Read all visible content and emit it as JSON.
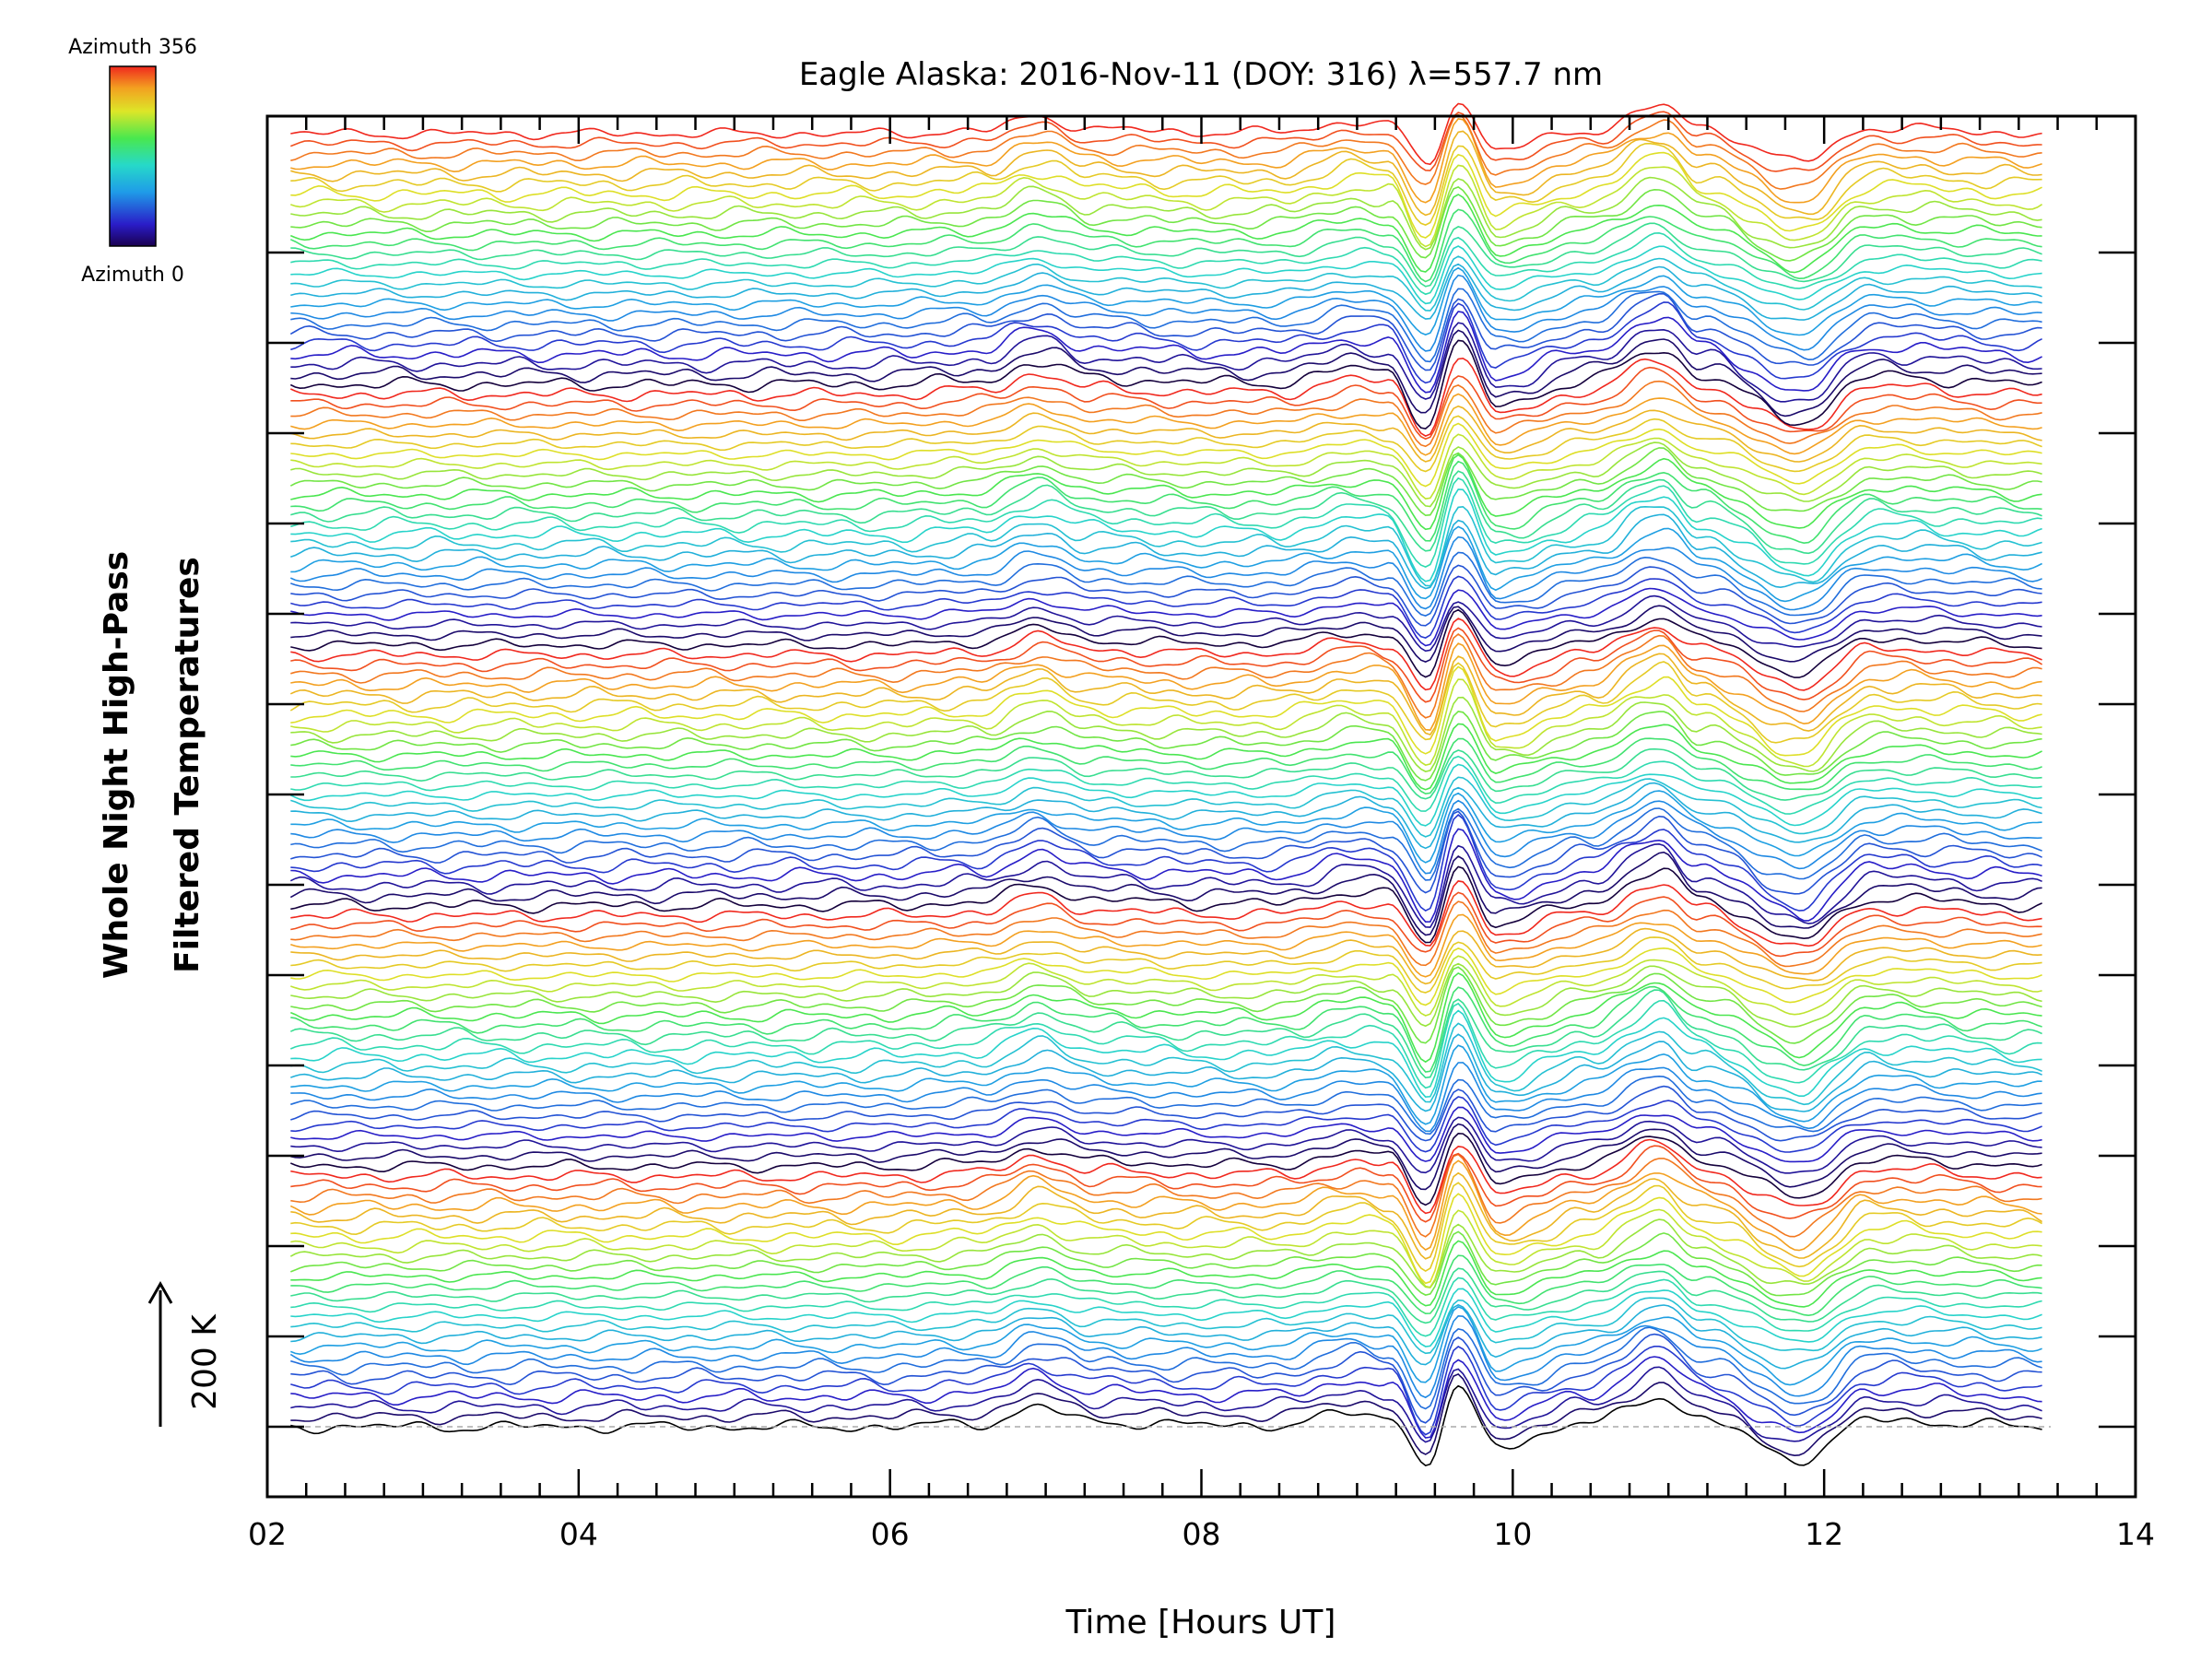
{
  "chart_data": {
    "type": "line",
    "title": "Eagle Alaska: 2016-Nov-11 (DOY: 316) λ=557.7 nm",
    "xlabel": "Time [Hours UT]",
    "ylabel_lines": [
      "Whole Night High-Pass",
      "Filtered Temperatures"
    ],
    "xlim": [
      2,
      14
    ],
    "x_ticks": [
      "02",
      "04",
      "06",
      "08",
      "10",
      "12",
      "14"
    ],
    "x_data_range": [
      2.15,
      13.4
    ],
    "scale_bar_label": "200 K",
    "grid": false,
    "legend": {
      "type": "colorbar",
      "placement": "top-left",
      "max_label": "Azimuth 356",
      "min_label": "Azimuth 0",
      "colormap": "rainbow"
    },
    "series_count": 130,
    "azimuth_range_deg": [
      0,
      356
    ],
    "profile_key_points": {
      "x": [
        2.15,
        3.0,
        4.0,
        5.0,
        6.0,
        6.6,
        6.95,
        7.3,
        8.0,
        8.5,
        9.0,
        9.2,
        9.45,
        9.65,
        9.9,
        10.5,
        10.95,
        11.2,
        11.85,
        12.3,
        13.4
      ],
      "y_relative": [
        0,
        0,
        0,
        0,
        0,
        0.1,
        0.55,
        0.15,
        0.05,
        0.05,
        0.4,
        0.3,
        -1.0,
        1.0,
        -0.5,
        0.1,
        0.9,
        0.2,
        -0.9,
        0.2,
        0
      ]
    },
    "colors": {
      "axis": "#000000",
      "baseline": "#aaaaaa"
    }
  }
}
